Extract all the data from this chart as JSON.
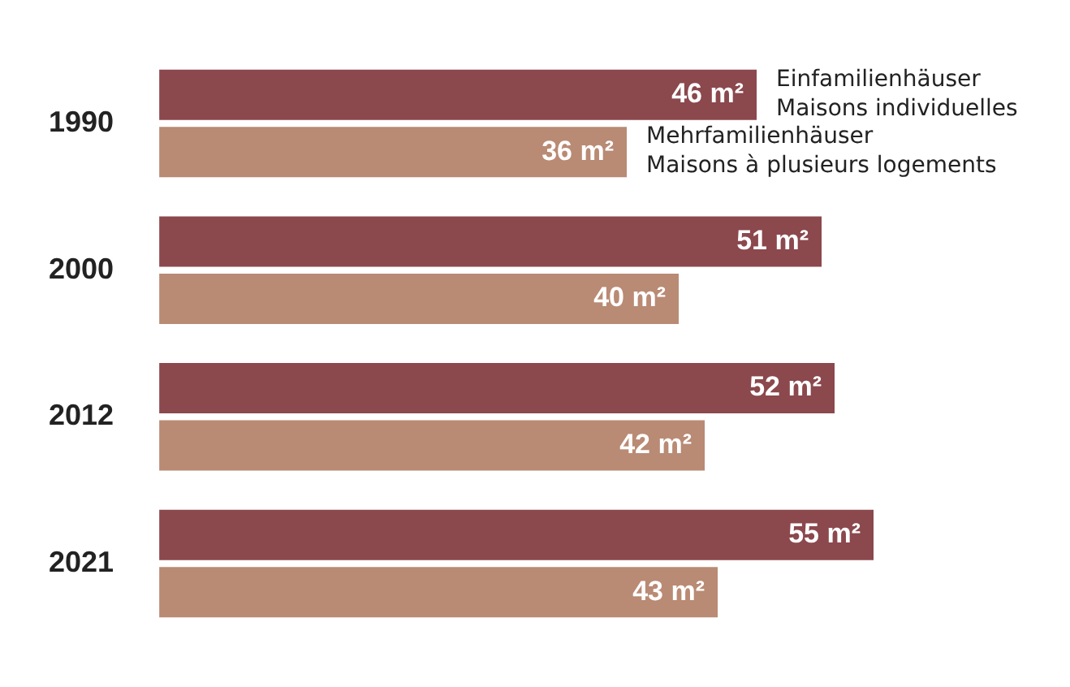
{
  "chart_data": {
    "type": "bar",
    "orientation": "horizontal",
    "categories": [
      "1990",
      "2000",
      "2012",
      "2021"
    ],
    "series": [
      {
        "name": "Einfamilienhäuser\nMaisons individuelles",
        "color": "#8b484d",
        "values": [
          46,
          51,
          52,
          55
        ],
        "value_labels": [
          "46 m²",
          "51 m²",
          "52 m²",
          "55 m²"
        ]
      },
      {
        "name": "Mehrfamilienhäuser\nMaisons à plusieurs logements",
        "color": "#b98a74",
        "values": [
          36,
          40,
          42,
          43
        ],
        "value_labels": [
          "36 m²",
          "40 m²",
          "42 m²",
          "43 m²"
        ]
      }
    ],
    "legend": false
  }
}
